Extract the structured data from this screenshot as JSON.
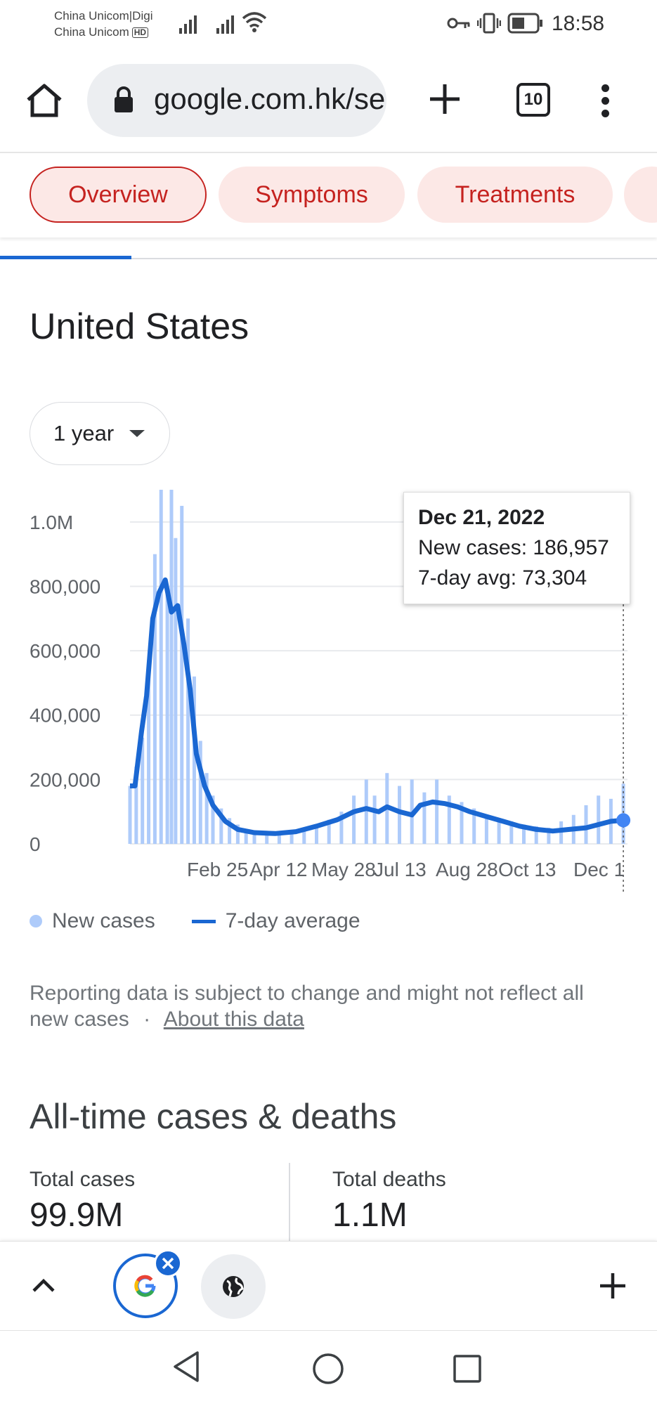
{
  "status_bar": {
    "carrier1": "China Unicom|Digi",
    "carrier2": "China Unicom",
    "carrier2_badge": "HD",
    "time": "18:58",
    "icons": [
      "signal-icon",
      "signal-icon",
      "wifi-icon",
      "key-icon",
      "vibrate-icon",
      "battery-icon"
    ]
  },
  "browser": {
    "url": "google.com.hk/search",
    "tab_count": "10",
    "icons": [
      "home-icon",
      "lock-icon",
      "new-tab-plus-icon",
      "tab-switcher-icon",
      "more-menu-icon"
    ]
  },
  "chips": [
    "Overview",
    "Symptoms",
    "Treatments"
  ],
  "active_chip": "Overview",
  "region": {
    "title": "United States",
    "range": "1 year"
  },
  "colors": {
    "accent": "#1a67d2",
    "bar": "#aecbfa",
    "chip_bg": "#fce8e6",
    "chip_text": "#c5221f"
  },
  "chart_data": {
    "type": "bar",
    "title": "",
    "x_labels": [
      "Feb 25",
      "Apr 12",
      "May 28",
      "Jul 13",
      "Aug 28",
      "Oct 13",
      "Dec 1"
    ],
    "y_ticks": [
      "1.0M",
      "800,000",
      "600,000",
      "400,000",
      "200,000",
      "0"
    ],
    "y_tick_values": [
      1000000,
      800000,
      600000,
      400000,
      200000,
      0
    ],
    "ylim": [
      0,
      1100000
    ],
    "xlim_months": [
      0,
      12
    ],
    "grid": true,
    "series": [
      {
        "name": "New cases",
        "type": "bar",
        "points": [
          [
            0.0,
            180000
          ],
          [
            0.15,
            240000
          ],
          [
            0.3,
            330000
          ],
          [
            0.45,
            520000
          ],
          [
            0.6,
            900000
          ],
          [
            0.75,
            1100000
          ],
          [
            0.9,
            800000
          ],
          [
            1.0,
            1100000
          ],
          [
            1.1,
            950000
          ],
          [
            1.25,
            1050000
          ],
          [
            1.4,
            700000
          ],
          [
            1.55,
            520000
          ],
          [
            1.7,
            320000
          ],
          [
            1.85,
            220000
          ],
          [
            2.0,
            150000
          ],
          [
            2.2,
            110000
          ],
          [
            2.4,
            80000
          ],
          [
            2.6,
            60000
          ],
          [
            2.8,
            45000
          ],
          [
            3.0,
            40000
          ],
          [
            3.3,
            35000
          ],
          [
            3.6,
            33000
          ],
          [
            3.9,
            35000
          ],
          [
            4.2,
            42000
          ],
          [
            4.5,
            55000
          ],
          [
            4.8,
            75000
          ],
          [
            5.1,
            100000
          ],
          [
            5.4,
            150000
          ],
          [
            5.7,
            200000
          ],
          [
            5.9,
            150000
          ],
          [
            6.2,
            220000
          ],
          [
            6.5,
            180000
          ],
          [
            6.8,
            200000
          ],
          [
            7.1,
            160000
          ],
          [
            7.4,
            200000
          ],
          [
            7.7,
            150000
          ],
          [
            8.0,
            130000
          ],
          [
            8.3,
            110000
          ],
          [
            8.6,
            90000
          ],
          [
            8.9,
            80000
          ],
          [
            9.2,
            70000
          ],
          [
            9.5,
            60000
          ],
          [
            9.8,
            55000
          ],
          [
            10.1,
            50000
          ],
          [
            10.4,
            70000
          ],
          [
            10.7,
            90000
          ],
          [
            11.0,
            120000
          ],
          [
            11.3,
            150000
          ],
          [
            11.6,
            140000
          ],
          [
            11.9,
            186957
          ]
        ]
      },
      {
        "name": "7-day average",
        "type": "line",
        "points": [
          [
            0.0,
            180000
          ],
          [
            0.12,
            180000
          ],
          [
            0.28,
            350000
          ],
          [
            0.4,
            460000
          ],
          [
            0.55,
            700000
          ],
          [
            0.7,
            780000
          ],
          [
            0.85,
            820000
          ],
          [
            1.0,
            720000
          ],
          [
            1.15,
            740000
          ],
          [
            1.3,
            620000
          ],
          [
            1.45,
            480000
          ],
          [
            1.6,
            280000
          ],
          [
            1.8,
            180000
          ],
          [
            2.0,
            120000
          ],
          [
            2.3,
            70000
          ],
          [
            2.6,
            45000
          ],
          [
            3.0,
            35000
          ],
          [
            3.5,
            32000
          ],
          [
            4.0,
            38000
          ],
          [
            4.5,
            55000
          ],
          [
            5.0,
            75000
          ],
          [
            5.4,
            100000
          ],
          [
            5.7,
            110000
          ],
          [
            6.0,
            100000
          ],
          [
            6.2,
            115000
          ],
          [
            6.5,
            100000
          ],
          [
            6.8,
            90000
          ],
          [
            7.0,
            120000
          ],
          [
            7.3,
            130000
          ],
          [
            7.6,
            125000
          ],
          [
            7.9,
            115000
          ],
          [
            8.2,
            100000
          ],
          [
            8.6,
            85000
          ],
          [
            9.0,
            70000
          ],
          [
            9.4,
            55000
          ],
          [
            9.8,
            45000
          ],
          [
            10.2,
            40000
          ],
          [
            10.6,
            45000
          ],
          [
            11.0,
            50000
          ],
          [
            11.3,
            60000
          ],
          [
            11.6,
            70000
          ],
          [
            11.9,
            73304
          ]
        ]
      }
    ],
    "tooltip": {
      "date": "Dec 21, 2022",
      "new_cases_line": "New cases: 186,957",
      "avg_line": "7-day avg: 73,304"
    },
    "legend": [
      "New cases",
      "7-day average"
    ],
    "legend_placement": "bottom-left"
  },
  "note": {
    "text": "Reporting data is subject to change and might not reflect all new cases",
    "sep": "·",
    "link": "About this data"
  },
  "alltime": {
    "title": "All-time cases & deaths",
    "stats": [
      {
        "label": "Total cases",
        "value": "99.9M"
      },
      {
        "label": "Total deaths",
        "value": "1.1M"
      }
    ]
  },
  "bottom_icons": [
    "chevron-up-icon",
    "google-tab-icon",
    "close-badge-icon",
    "globe-tab-icon",
    "add-tab-icon"
  ],
  "nav_icons": [
    "back-icon",
    "home-circle-icon",
    "recents-icon"
  ]
}
